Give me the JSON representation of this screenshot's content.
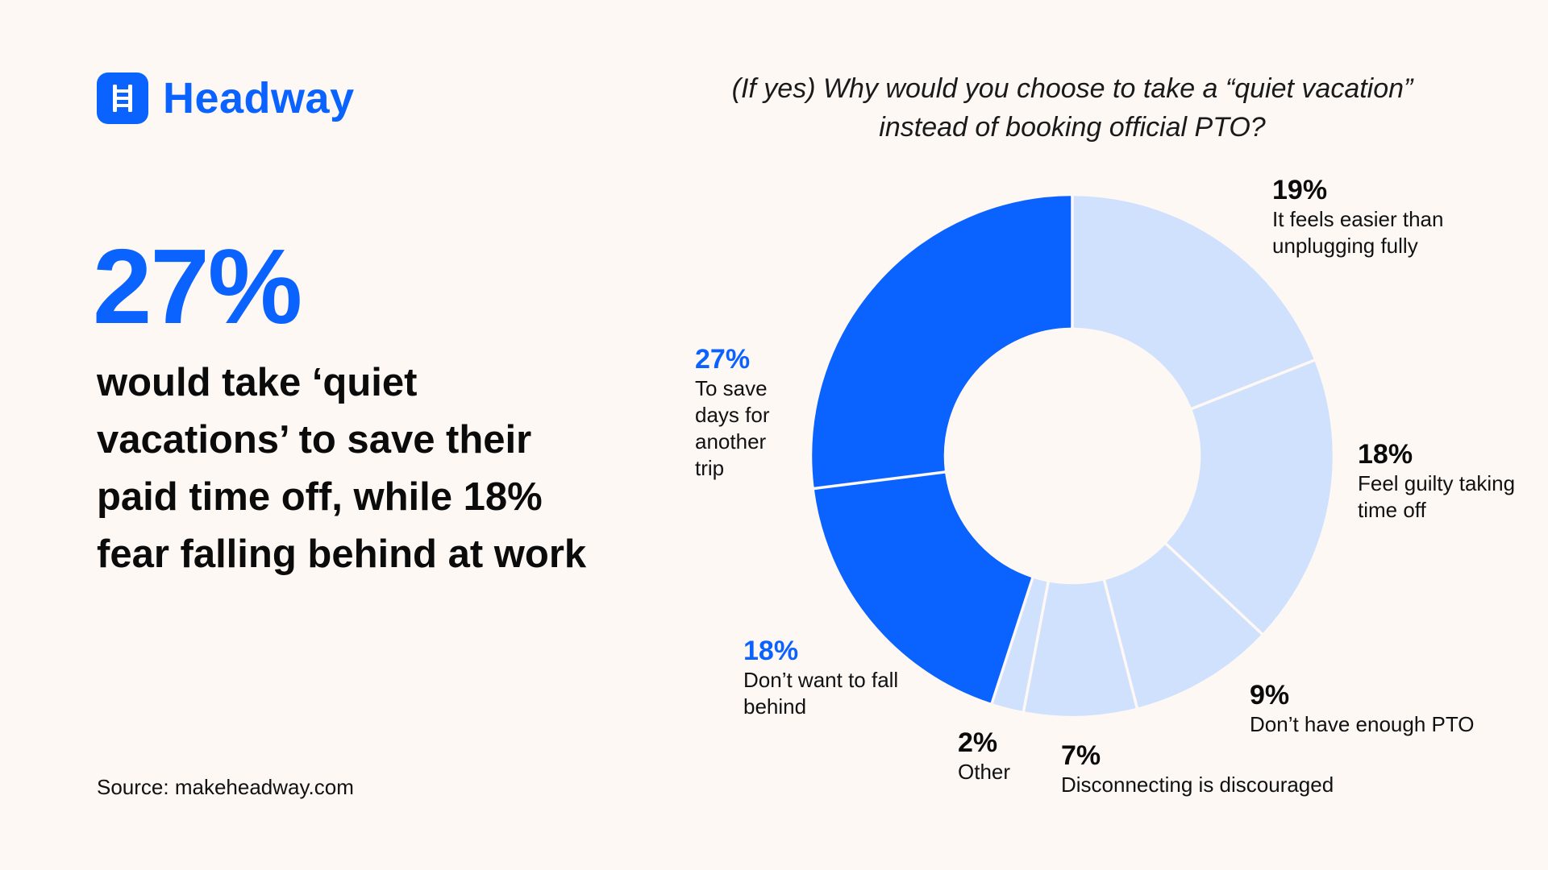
{
  "brand": {
    "name": "Headway",
    "logo_icon": "ladder-icon",
    "color": "#0A62FF"
  },
  "hero": {
    "stat": "27%",
    "headline": "would take ‘quiet vacations’ to save their paid time off, while 18% fear falling behind at work"
  },
  "source": "Source: makeheadway.com",
  "chart_data": {
    "type": "pie",
    "title": "(If yes) Why would you choose to take a “quiet vacation” instead of booking official PTO?",
    "style": "donut",
    "start_angle_deg": 0,
    "direction": "clockwise",
    "colors": {
      "highlight": "#0A62FF",
      "default": "#CFE1FC"
    },
    "slices": [
      {
        "key": "easier",
        "label": "It feels easier than unplugging fully",
        "value": 19,
        "display": "19%",
        "highlight": false
      },
      {
        "key": "guilty",
        "label": "Feel guilty taking time off",
        "value": 18,
        "display": "18%",
        "highlight": false
      },
      {
        "key": "pto",
        "label": "Don’t have enough PTO",
        "value": 9,
        "display": "9%",
        "highlight": false
      },
      {
        "key": "disconnect",
        "label": "Disconnecting is discouraged",
        "value": 7,
        "display": "7%",
        "highlight": false
      },
      {
        "key": "other",
        "label": "Other",
        "value": 2,
        "display": "2%",
        "highlight": false
      },
      {
        "key": "behind",
        "label": "Don’t want to fall behind",
        "value": 18,
        "display": "18%",
        "highlight": true
      },
      {
        "key": "save",
        "label": "To save days for another trip",
        "value": 27,
        "display": "27%",
        "highlight": true
      }
    ]
  }
}
